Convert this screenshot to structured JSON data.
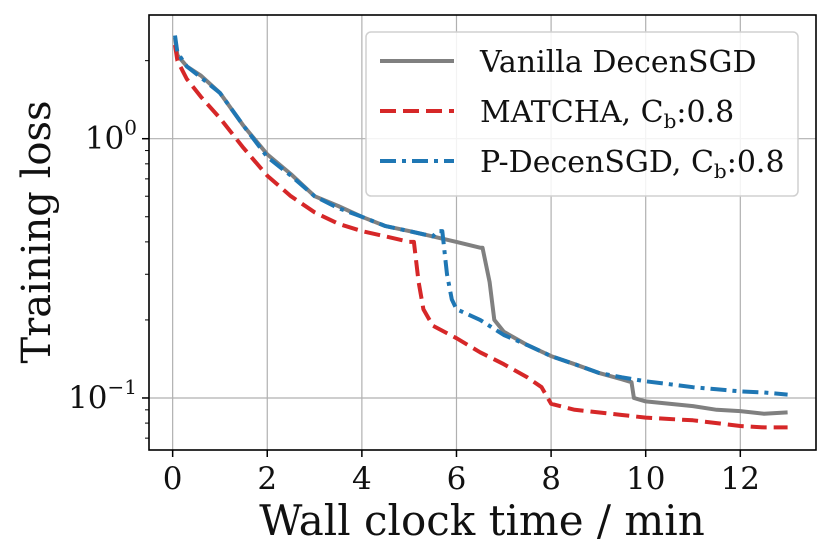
{
  "chart_data": {
    "type": "line",
    "xlabel": "Wall clock time / min",
    "ylabel": "Training loss",
    "yscale": "log",
    "xlim": [
      -0.5,
      13.6
    ],
    "ylim": [
      0.063,
      3.0
    ],
    "grid": true,
    "legend_position": "top-right",
    "x_ticks": [
      0,
      2,
      4,
      6,
      8,
      10,
      12
    ],
    "x_tick_labels": [
      "0",
      "2",
      "4",
      "6",
      "8",
      "10",
      "12"
    ],
    "y_ticks": [
      {
        "value": 1.0,
        "base": "10",
        "exp": "0"
      },
      {
        "value": 0.1,
        "base": "10",
        "exp": "−1"
      }
    ],
    "series": [
      {
        "name": "Vanilla DecenSGD",
        "legend_main": "Vanilla DecenSGD",
        "legend_sub": "",
        "legend_tail": "",
        "color": "#808080",
        "style": "solid",
        "points": [
          [
            0.05,
            2.45
          ],
          [
            0.1,
            2.1
          ],
          [
            0.3,
            1.9
          ],
          [
            0.6,
            1.75
          ],
          [
            1.0,
            1.5
          ],
          [
            1.5,
            1.12
          ],
          [
            2.0,
            0.87
          ],
          [
            2.5,
            0.73
          ],
          [
            3.0,
            0.6
          ],
          [
            3.5,
            0.55
          ],
          [
            4.0,
            0.5
          ],
          [
            4.5,
            0.46
          ],
          [
            5.0,
            0.44
          ],
          [
            5.5,
            0.42
          ],
          [
            6.0,
            0.4
          ],
          [
            6.5,
            0.38
          ],
          [
            6.55,
            0.38
          ],
          [
            6.7,
            0.28
          ],
          [
            6.8,
            0.2
          ],
          [
            7.0,
            0.18
          ],
          [
            7.5,
            0.16
          ],
          [
            8.0,
            0.145
          ],
          [
            8.5,
            0.135
          ],
          [
            9.0,
            0.125
          ],
          [
            9.5,
            0.118
          ],
          [
            9.7,
            0.115
          ],
          [
            9.75,
            0.1
          ],
          [
            10.0,
            0.097
          ],
          [
            10.5,
            0.095
          ],
          [
            11.0,
            0.093
          ],
          [
            11.5,
            0.09
          ],
          [
            12.0,
            0.089
          ],
          [
            12.5,
            0.087
          ],
          [
            13.0,
            0.088
          ]
        ]
      },
      {
        "name": "MATCHA, Cb:0.8",
        "legend_main": "MATCHA, C",
        "legend_sub": "b",
        "legend_tail": ":0.8",
        "color": "#d62728",
        "style": "dashed",
        "points": [
          [
            0.05,
            2.3
          ],
          [
            0.1,
            2.0
          ],
          [
            0.3,
            1.7
          ],
          [
            0.6,
            1.45
          ],
          [
            1.0,
            1.2
          ],
          [
            1.5,
            0.92
          ],
          [
            2.0,
            0.72
          ],
          [
            2.5,
            0.6
          ],
          [
            3.0,
            0.52
          ],
          [
            3.5,
            0.47
          ],
          [
            4.0,
            0.44
          ],
          [
            4.5,
            0.42
          ],
          [
            5.0,
            0.4
          ],
          [
            5.1,
            0.4
          ],
          [
            5.2,
            0.28
          ],
          [
            5.3,
            0.22
          ],
          [
            5.5,
            0.19
          ],
          [
            6.0,
            0.17
          ],
          [
            6.5,
            0.15
          ],
          [
            7.0,
            0.135
          ],
          [
            7.5,
            0.12
          ],
          [
            7.8,
            0.11
          ],
          [
            8.0,
            0.095
          ],
          [
            8.5,
            0.09
          ],
          [
            9.0,
            0.088
          ],
          [
            9.5,
            0.086
          ],
          [
            10.0,
            0.084
          ],
          [
            10.5,
            0.083
          ],
          [
            11.0,
            0.082
          ],
          [
            11.5,
            0.08
          ],
          [
            12.0,
            0.078
          ],
          [
            12.5,
            0.077
          ],
          [
            13.0,
            0.077
          ]
        ]
      },
      {
        "name": "P-DecenSGD, Cb:0.8",
        "legend_main": "P-DecenSGD, C",
        "legend_sub": "b",
        "legend_tail": ":0.8",
        "color": "#1f77b4",
        "style": "dashdot",
        "points": [
          [
            0.05,
            2.5
          ],
          [
            0.1,
            2.15
          ],
          [
            0.3,
            1.9
          ],
          [
            0.6,
            1.72
          ],
          [
            1.0,
            1.5
          ],
          [
            1.5,
            1.12
          ],
          [
            2.0,
            0.85
          ],
          [
            2.5,
            0.72
          ],
          [
            3.0,
            0.6
          ],
          [
            3.5,
            0.54
          ],
          [
            4.0,
            0.5
          ],
          [
            4.5,
            0.46
          ],
          [
            5.0,
            0.44
          ],
          [
            5.5,
            0.42
          ],
          [
            5.6,
            0.44
          ],
          [
            5.7,
            0.44
          ],
          [
            5.8,
            0.3
          ],
          [
            5.9,
            0.24
          ],
          [
            6.0,
            0.22
          ],
          [
            6.5,
            0.2
          ],
          [
            7.0,
            0.175
          ],
          [
            7.5,
            0.16
          ],
          [
            8.0,
            0.145
          ],
          [
            8.5,
            0.135
          ],
          [
            9.0,
            0.125
          ],
          [
            9.5,
            0.12
          ],
          [
            10.0,
            0.116
          ],
          [
            10.5,
            0.113
          ],
          [
            11.0,
            0.11
          ],
          [
            11.5,
            0.108
          ],
          [
            12.0,
            0.106
          ],
          [
            12.5,
            0.105
          ],
          [
            13.0,
            0.103
          ]
        ]
      }
    ]
  }
}
